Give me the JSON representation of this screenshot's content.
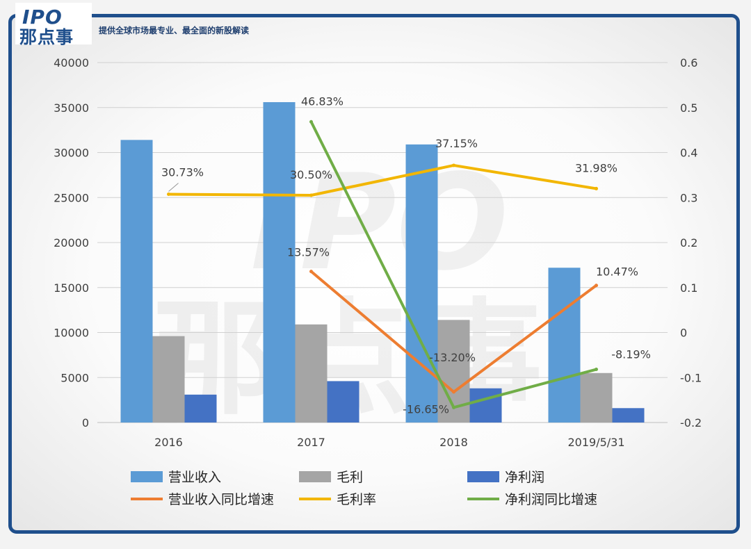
{
  "header": {
    "logo_ipo": "IPO",
    "logo_cn": "那点事",
    "tagline": "提供全球市场最专业、最全面的新股解读"
  },
  "chart_data": {
    "type": "bar",
    "categories": [
      "2016",
      "2017",
      "2018",
      "2019/5/31"
    ],
    "yaxis_left": {
      "lim": [
        0,
        40000
      ],
      "ticks": [
        "0",
        "5000",
        "10000",
        "15000",
        "20000",
        "25000",
        "30000",
        "35000",
        "40000"
      ]
    },
    "yaxis_right": {
      "lim": [
        -0.2,
        0.6
      ],
      "ticks": [
        "-0.2",
        "-0.1",
        "0",
        "0.1",
        "0.2",
        "0.3",
        "0.4",
        "0.5",
        "0.6"
      ]
    },
    "bar_series": [
      {
        "name": "营业收入",
        "color": "#5b9bd5",
        "values": [
          31400,
          35600,
          30900,
          17200
        ]
      },
      {
        "name": "毛利",
        "color": "#a5a5a5",
        "values": [
          9600,
          10900,
          11400,
          5500
        ]
      },
      {
        "name": "净利润",
        "color": "#4472c4",
        "values": [
          3100,
          4600,
          3800,
          1600
        ]
      }
    ],
    "line_series": [
      {
        "name": "营业收入同比增速",
        "color": "#ed7d31",
        "values": [
          null,
          0.1357,
          -0.132,
          0.1047
        ],
        "labels": [
          "",
          "13.57%",
          "-13.20%",
          "10.47%"
        ]
      },
      {
        "name": "毛利率",
        "color": "#f2b600",
        "values": [
          0.3073,
          0.305,
          0.3715,
          0.3198
        ],
        "labels": [
          "30.73%",
          "30.50%",
          "37.15%",
          "31.98%"
        ]
      },
      {
        "name": "净利润同比增速",
        "color": "#70ad47",
        "values": [
          null,
          0.4683,
          -0.1665,
          -0.0819
        ],
        "labels": [
          "",
          "46.83%",
          "-16.65%",
          "-8.19%"
        ]
      }
    ],
    "legend_position": "bottom",
    "grid": true
  }
}
